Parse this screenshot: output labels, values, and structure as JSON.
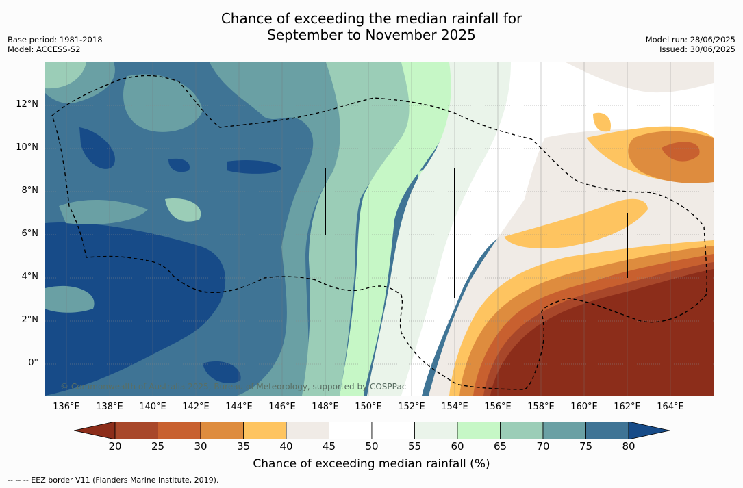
{
  "title_line1": "Chance of exceeding the median rainfall for",
  "title_line2": "September to November 2025",
  "base_period": "Base period: 1981-2018",
  "model": "Model: ACCESS-S2",
  "model_run": "Model run: 28/06/2025",
  "issued": "Issued: 30/06/2025",
  "copyright": "© Commonwealth of Australia 2025, Bureau of Meteorology, supported by COSPPac",
  "y_labels": [
    "12°N",
    "10°N",
    "8°N",
    "6°N",
    "4°N",
    "2°N",
    "0°"
  ],
  "x_labels": [
    "136°E",
    "138°E",
    "140°E",
    "142°E",
    "144°E",
    "146°E",
    "148°E",
    "150°E",
    "152°E",
    "154°E",
    "156°E",
    "158°E",
    "160°E",
    "162°E",
    "164°E"
  ],
  "colorbar": {
    "ticks": [
      "20",
      "25",
      "30",
      "35",
      "40",
      "45",
      "50",
      "55",
      "60",
      "65",
      "70",
      "75",
      "80"
    ],
    "colors": [
      "#8c2d1a",
      "#a8472a",
      "#c8602f",
      "#de8c3e",
      "#fec460",
      "#f0ebe6",
      "#ffffff",
      "#ffffff",
      "#eaf4ea",
      "#c6f7c6",
      "#9bcdb7",
      "#6aa0a4",
      "#3f7495",
      "#174b88"
    ],
    "title": "Chance of exceeding median rainfall (%)"
  },
  "footnote": "-- -- -- EEZ border V11 (Flanders Marine Institute, 2019).",
  "chart_data": {
    "type": "heatmap",
    "title": "Chance of exceeding the median rainfall for September to November 2025",
    "colorbar_label": "Chance of exceeding median rainfall (%)",
    "colorbar_range": [
      20,
      80
    ],
    "colorbar_step": 5,
    "lon_range_deg_e": [
      135,
      166
    ],
    "lat_range_deg_n": [
      -1.5,
      14
    ],
    "lon_ticks": [
      136,
      138,
      140,
      142,
      144,
      146,
      148,
      150,
      152,
      154,
      156,
      158,
      160,
      162,
      164
    ],
    "lat_ticks": [
      12,
      10,
      8,
      6,
      4,
      2,
      0
    ],
    "grid": true,
    "regions": [
      {
        "area": "west (135-146°E)",
        "chance_percent_range": [
          70,
          80
        ]
      },
      {
        "area": "central (147-152°E)",
        "chance_percent_range": [
          55,
          70
        ]
      },
      {
        "area": "east-central (152-157°E)",
        "chance_percent_range": [
          45,
          60
        ]
      },
      {
        "area": "north-east (158-166°E, 7-11°N)",
        "chance_percent_range": [
          25,
          40
        ]
      },
      {
        "area": "south-east (154-166°E, below 4°N)",
        "chance_percent_range": [
          20,
          35
        ]
      }
    ]
  }
}
